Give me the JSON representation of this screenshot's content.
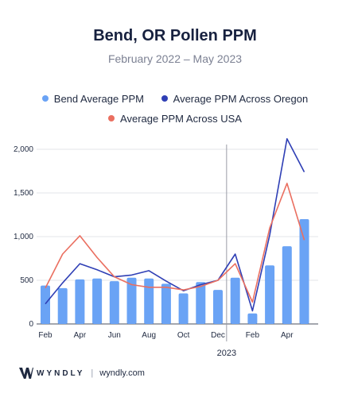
{
  "chart_data": {
    "type": "bar",
    "title": "Bend, OR Pollen PPM",
    "subtitle": "February 2022 – May 2023",
    "categories": [
      "Feb 2022",
      "Mar 2022",
      "Apr 2022",
      "May 2022",
      "Jun 2022",
      "Jul 2022",
      "Aug 2022",
      "Sep 2022",
      "Oct 2022",
      "Nov 2022",
      "Dec 2022",
      "Jan 2023",
      "Feb 2023",
      "Mar 2023",
      "Apr 2023",
      "May 2023"
    ],
    "x_tick_labels": [
      "Feb",
      "Apr",
      "Jun",
      "Aug",
      "Oct",
      "Dec",
      "Feb",
      "Apr"
    ],
    "year_label": "2023",
    "series": [
      {
        "name": "Bend Average PPM",
        "kind": "bar",
        "color": "#6aa3f5",
        "values": [
          440,
          410,
          510,
          520,
          490,
          530,
          520,
          460,
          350,
          480,
          390,
          530,
          120,
          670,
          890,
          1200
        ]
      },
      {
        "name": "Average PPM Across Oregon",
        "kind": "line",
        "color": "#2f3fb5",
        "values": [
          230,
          470,
          690,
          620,
          540,
          560,
          610,
          490,
          380,
          450,
          500,
          800,
          150,
          1020,
          2120,
          1740
        ]
      },
      {
        "name": "Average PPM Across USA",
        "kind": "line",
        "color": "#ea6f60",
        "values": [
          410,
          800,
          1010,
          760,
          540,
          450,
          420,
          420,
          390,
          430,
          500,
          690,
          250,
          1100,
          1610,
          960
        ]
      }
    ],
    "y_ticks": [
      "0",
      "500",
      "1,000",
      "1,500",
      "2,000"
    ],
    "ylim": [
      0,
      2200
    ],
    "grid": true,
    "legend_position": "top"
  },
  "footer": {
    "brand": "WYNDLY",
    "separator": "|",
    "url": "wyndly.com"
  }
}
